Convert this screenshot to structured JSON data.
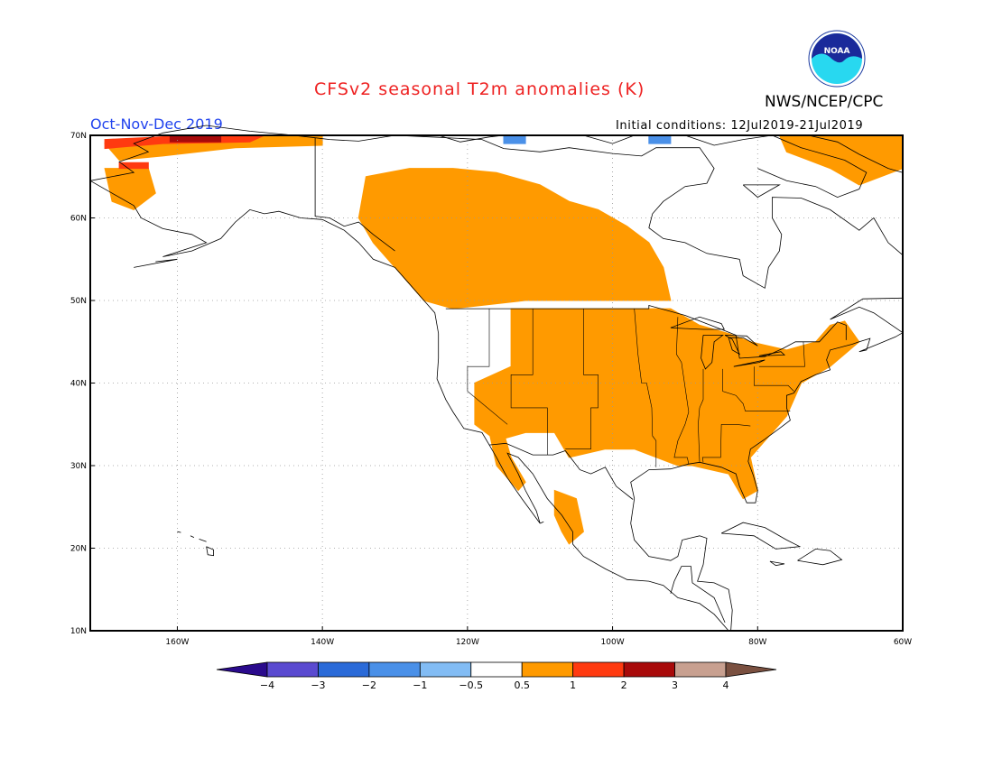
{
  "header": {
    "title": "CFSv2 seasonal T2m anomalies (K)",
    "organization": "NWS/NCEP/CPC",
    "period": "Oct-Nov-Dec 2019",
    "initial_conditions": "Initial conditions: 12Jul2019-21Jul2019",
    "logo": "noaa-logo"
  },
  "map": {
    "projection": "cylindrical",
    "lon_range": [
      -172,
      -60
    ],
    "lat_range": [
      10,
      70
    ],
    "lon_ticks": [
      {
        "value": -160,
        "label": "160W"
      },
      {
        "value": -140,
        "label": "140W"
      },
      {
        "value": -120,
        "label": "120W"
      },
      {
        "value": -100,
        "label": "100W"
      },
      {
        "value": -80,
        "label": "80W"
      },
      {
        "value": -60,
        "label": "60W"
      }
    ],
    "lat_ticks": [
      {
        "value": 10,
        "label": "10N"
      },
      {
        "value": 20,
        "label": "20N"
      },
      {
        "value": 30,
        "label": "30N"
      },
      {
        "value": 40,
        "label": "40N"
      },
      {
        "value": 50,
        "label": "50N"
      },
      {
        "value": 60,
        "label": "60N"
      },
      {
        "value": 70,
        "label": "70N"
      }
    ],
    "gridlines": "dotted",
    "colors": {
      "land_outline": "#000000",
      "grid": "#999999",
      "background": "#ffffff"
    }
  },
  "colorbar": {
    "levels": [
      "-4",
      "-3",
      "-2",
      "-1",
      "-0.5",
      "0.5",
      "1",
      "2",
      "3",
      "4"
    ],
    "colors": [
      "#2a0a8c",
      "#5a4ad0",
      "#2a6ad8",
      "#4a90e8",
      "#82bcf4",
      "#ffffff",
      "#ff9a00",
      "#ff3a10",
      "#a80a0a",
      "#c8a090",
      "#7a5040"
    ]
  },
  "anomaly_regions": [
    {
      "name": "Northwest Canada and Alaska panhandle",
      "category": "0.5 to 1",
      "polygon": [
        [
          -134,
          65
        ],
        [
          -128,
          66
        ],
        [
          -122,
          66
        ],
        [
          -116,
          65.5
        ],
        [
          -110,
          64
        ],
        [
          -106,
          62
        ],
        [
          -102,
          61
        ],
        [
          -98,
          59
        ],
        [
          -95,
          57
        ],
        [
          -93,
          54
        ],
        [
          -92,
          50
        ],
        [
          -112,
          50
        ],
        [
          -122,
          49
        ],
        [
          -126,
          50
        ],
        [
          -130,
          54
        ],
        [
          -133,
          57
        ],
        [
          -135,
          60
        ]
      ]
    },
    {
      "name": "Northern Alaska coast",
      "category": "0.5 to 1",
      "polygon": [
        [
          -170,
          69
        ],
        [
          -160,
          70
        ],
        [
          -140,
          70
        ],
        [
          -140,
          68.8
        ],
        [
          -152,
          68.5
        ],
        [
          -162,
          67.5
        ],
        [
          -168,
          67
        ]
      ]
    },
    {
      "name": "Western Alaska",
      "category": "0.5 to 1",
      "polygon": [
        [
          -170,
          66
        ],
        [
          -164,
          66
        ],
        [
          -163,
          63
        ],
        [
          -166,
          61
        ],
        [
          -169,
          62
        ]
      ]
    },
    {
      "name": "Central and eastern United States",
      "category": "0.5 to 1",
      "polygon": [
        [
          -114,
          49
        ],
        [
          -92,
          49
        ],
        [
          -88,
          47
        ],
        [
          -84,
          46
        ],
        [
          -81,
          45
        ],
        [
          -76,
          44
        ],
        [
          -72,
          45
        ],
        [
          -70,
          47
        ],
        [
          -68,
          47.5
        ],
        [
          -66,
          45
        ],
        [
          -70,
          42
        ],
        [
          -74,
          40
        ],
        [
          -76,
          36
        ],
        [
          -78,
          34
        ],
        [
          -81,
          31
        ],
        [
          -80,
          27
        ],
        [
          -82,
          26
        ],
        [
          -84,
          29
        ],
        [
          -89,
          30
        ],
        [
          -91,
          30
        ],
        [
          -97,
          32
        ],
        [
          -101,
          32
        ],
        [
          -106,
          31
        ],
        [
          -108,
          34
        ],
        [
          -112,
          34
        ],
        [
          -116,
          33
        ],
        [
          -119,
          35
        ],
        [
          -119,
          40
        ],
        [
          -114,
          42
        ]
      ]
    },
    {
      "name": "Baja California",
      "category": "0.5 to 1",
      "polygon": [
        [
          -117,
          34
        ],
        [
          -115,
          34
        ],
        [
          -114,
          31
        ],
        [
          -112,
          28
        ],
        [
          -113,
          27
        ],
        [
          -116,
          30
        ]
      ]
    },
    {
      "name": "Northwest Mexico",
      "category": "0.5 to 1",
      "polygon": [
        [
          -108,
          27
        ],
        [
          -105,
          26
        ],
        [
          -104,
          22
        ],
        [
          -106,
          20.5
        ],
        [
          -107,
          22
        ],
        [
          -108,
          24
        ]
      ]
    },
    {
      "name": "Greenland coast",
      "category": "0.5 to 1",
      "polygon": [
        [
          -77,
          70
        ],
        [
          -60,
          70
        ],
        [
          -60,
          66
        ],
        [
          -66,
          64
        ],
        [
          -70,
          66
        ],
        [
          -76,
          68
        ]
      ]
    }
  ],
  "anomaly_strong_regions": [
    {
      "name": "Northwest Alaska",
      "category": "1 to 2",
      "polygon": [
        [
          -170,
          69.5
        ],
        [
          -158,
          70
        ],
        [
          -148,
          70
        ],
        [
          -150,
          69.2
        ],
        [
          -162,
          69
        ],
        [
          -170,
          68.4
        ]
      ]
    },
    {
      "name": "Alaska Chukchi coast",
      "category": "1 to 2",
      "polygon": [
        [
          -168,
          66.7
        ],
        [
          -164,
          66.7
        ],
        [
          -164,
          66
        ],
        [
          -168,
          66
        ]
      ]
    }
  ],
  "anomaly_very_strong_regions": [
    {
      "name": "North Slope",
      "category": "2 to 3",
      "polygon": [
        [
          -161,
          70
        ],
        [
          -154,
          70
        ],
        [
          -154,
          69.2
        ],
        [
          -161,
          69.2
        ]
      ]
    }
  ],
  "anomaly_cold_regions": [
    {
      "name": "Arctic islands",
      "category": "-1 to -0.5",
      "polygon": [
        [
          -115,
          70
        ],
        [
          -112,
          70
        ],
        [
          -112,
          69
        ],
        [
          -115,
          69
        ]
      ]
    },
    {
      "name": "Arctic islands east",
      "category": "-1 to -0.5",
      "polygon": [
        [
          -95,
          70
        ],
        [
          -92,
          70
        ],
        [
          -92,
          69
        ],
        [
          -95,
          69
        ]
      ]
    }
  ]
}
